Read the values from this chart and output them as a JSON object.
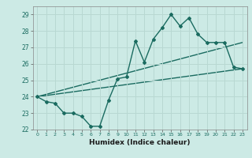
{
  "xlabel": "Humidex (Indice chaleur)",
  "bg_color": "#cceae5",
  "grid_color": "#b8d8d2",
  "line_color": "#1a6b60",
  "xlim": [
    -0.5,
    23.5
  ],
  "ylim": [
    22,
    29.5
  ],
  "xticks": [
    0,
    1,
    2,
    3,
    4,
    5,
    6,
    7,
    8,
    9,
    10,
    11,
    12,
    13,
    14,
    15,
    16,
    17,
    18,
    19,
    20,
    21,
    22,
    23
  ],
  "yticks": [
    22,
    23,
    24,
    25,
    26,
    27,
    28,
    29
  ],
  "line1_x": [
    0,
    1,
    2,
    3,
    4,
    5,
    6,
    7,
    8,
    9,
    10,
    11,
    12,
    13,
    14,
    15,
    16,
    17,
    18,
    19,
    20,
    21,
    22,
    23
  ],
  "line1_y": [
    24.0,
    23.7,
    23.6,
    23.0,
    23.0,
    22.8,
    22.2,
    22.2,
    23.8,
    25.1,
    25.2,
    27.4,
    26.1,
    27.5,
    28.2,
    29.0,
    28.3,
    28.8,
    27.8,
    27.3,
    27.3,
    27.3,
    25.8,
    25.7
  ],
  "line2_x": [
    0,
    23
  ],
  "line2_y": [
    24.0,
    27.3
  ],
  "line3_x": [
    0,
    23
  ],
  "line3_y": [
    24.0,
    25.7
  ]
}
